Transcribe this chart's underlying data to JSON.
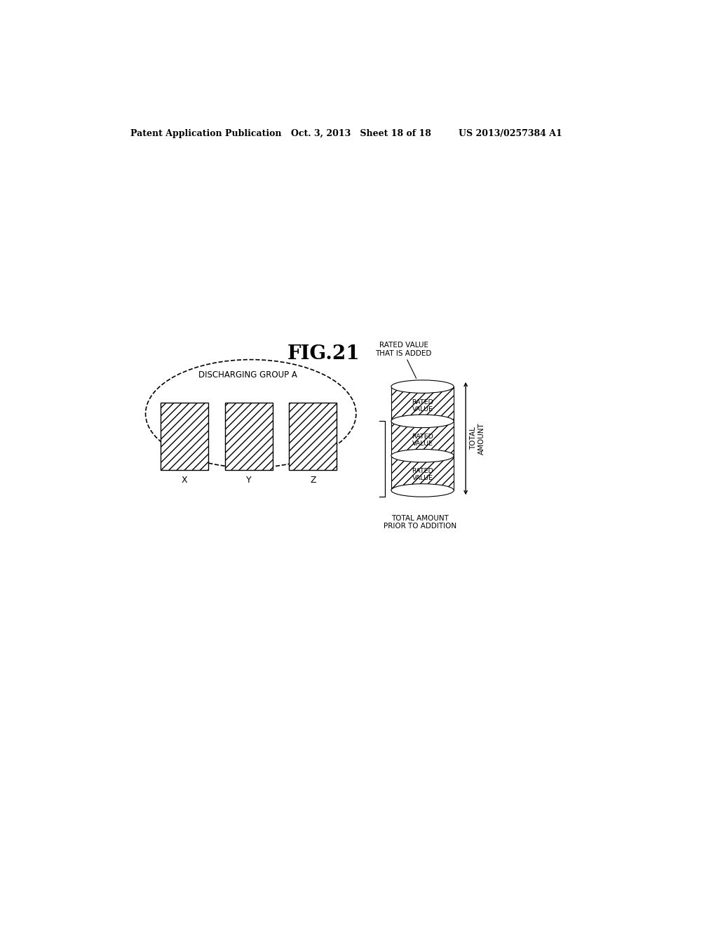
{
  "title": "FIG.21",
  "header_left": "Patent Application Publication",
  "header_mid": "Oct. 3, 2013   Sheet 18 of 18",
  "header_right": "US 2013/0257384 A1",
  "group_label": "DISCHARGING GROUP A",
  "box_labels": [
    "X",
    "Y",
    "Z"
  ],
  "cylinder_section_labels": [
    "RATED\nVALUE",
    "RATED\nVALUE",
    "RATED\nVALUE"
  ],
  "rated_value_added_label": "RATED VALUE\nTHAT IS ADDED",
  "total_amount_prior_label": "TOTAL AMOUNT\nPRIOR TO ADDITION",
  "total_amount_arrow_label": "TOTAL\nAMOUNT",
  "bg_color": "#ffffff",
  "hatch_pattern": "///",
  "font_size_header": 9,
  "font_size_title": 20,
  "font_size_labels": 8
}
